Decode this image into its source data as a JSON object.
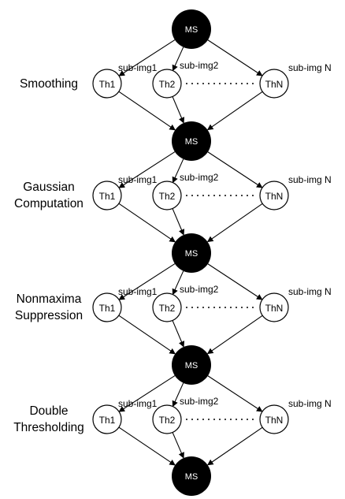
{
  "diagram": {
    "master_label": "MS",
    "thread_labels": [
      "Th1",
      "Th2",
      "ThN"
    ],
    "sub_image_labels": [
      "sub-img1",
      "sub-img2",
      "sub-img N"
    ],
    "stages": [
      {
        "lines": [
          "Smoothing"
        ]
      },
      {
        "lines": [
          "Gaussian",
          "Computation"
        ]
      },
      {
        "lines": [
          "Nonmaxima",
          "Suppression"
        ]
      },
      {
        "lines": [
          "Double",
          "Thresholding"
        ]
      }
    ]
  },
  "colors": {
    "master_fill": "#000000",
    "thread_fill": "#ffffff",
    "stroke": "#000000"
  }
}
